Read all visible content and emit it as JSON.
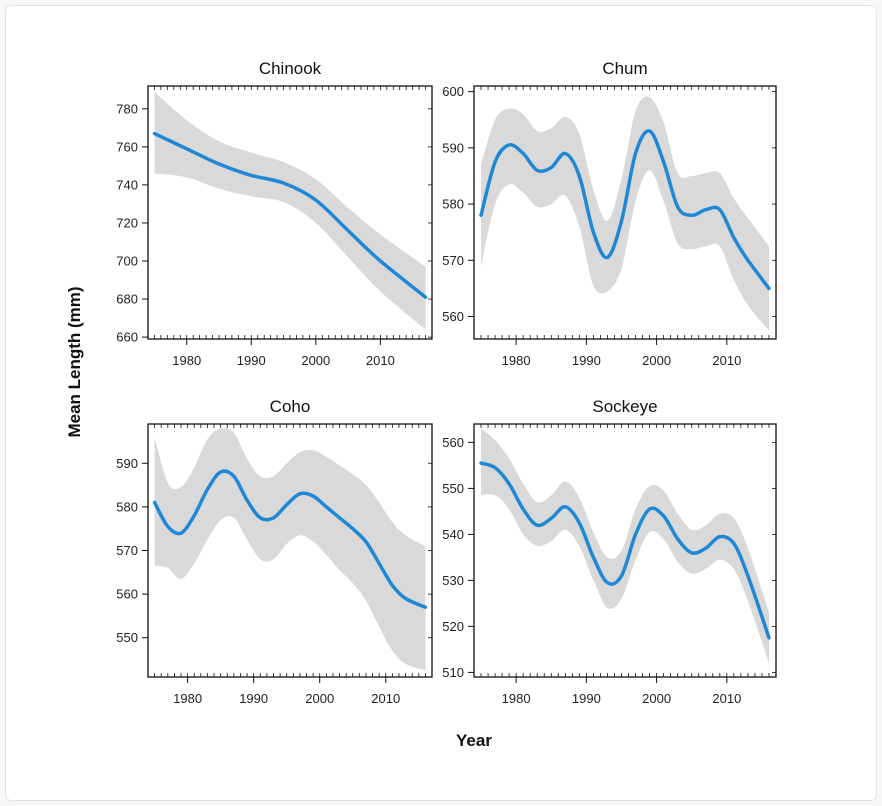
{
  "figure": {
    "ylabel": "Mean Length (mm)",
    "xlabel": "Year"
  },
  "colors": {
    "line": "#1f88d6",
    "band": "#d9d9d9",
    "axis": "#111111"
  },
  "chart_data": [
    {
      "type": "line",
      "title": "Chinook",
      "xlim": [
        1974,
        2018
      ],
      "ylim": [
        659,
        792
      ],
      "xticks": [
        1980,
        1990,
        2000,
        2010
      ],
      "yticks": [
        660,
        680,
        700,
        720,
        740,
        760,
        780
      ],
      "x": [
        1975,
        1980,
        1985,
        1990,
        1995,
        2000,
        2005,
        2010,
        2017
      ],
      "series": [
        {
          "values": [
            767,
            759,
            751,
            745,
            741,
            732,
            716,
            700,
            681
          ]
        }
      ],
      "lower": [
        746,
        744,
        738,
        734,
        731,
        720,
        702,
        684,
        664
      ],
      "upper": [
        789,
        774,
        763,
        757,
        752,
        743,
        728,
        714,
        697
      ]
    },
    {
      "type": "line",
      "title": "Chum",
      "xlim": [
        1974,
        2017
      ],
      "ylim": [
        556,
        601
      ],
      "xticks": [
        1980,
        1990,
        2000,
        2010
      ],
      "yticks": [
        560,
        570,
        580,
        590,
        600
      ],
      "x": [
        1975,
        1977,
        1979,
        1981,
        1983,
        1985,
        1987,
        1989,
        1991,
        1993,
        1995,
        1997,
        1999,
        2001,
        2003,
        2005,
        2007,
        2009,
        2011,
        2013,
        2016
      ],
      "series": [
        {
          "values": [
            578,
            587.5,
            590.5,
            589,
            586,
            586.5,
            589,
            585,
            575,
            570.5,
            577,
            589,
            593,
            587.5,
            579.5,
            578,
            579,
            579,
            574,
            570,
            565
          ]
        }
      ],
      "lower": [
        569,
        580,
        583.5,
        582,
        579.5,
        580,
        581.5,
        576,
        565.5,
        564.5,
        568.5,
        580.5,
        586,
        580.5,
        573,
        572,
        572.5,
        572.5,
        566.5,
        562,
        557.5
      ],
      "upper": [
        587,
        595,
        597,
        596,
        593,
        593.5,
        595.5,
        592.5,
        582.5,
        577,
        584.5,
        596.5,
        599,
        594.5,
        585.5,
        585,
        585.5,
        585.5,
        581,
        577.5,
        572.5
      ]
    },
    {
      "type": "line",
      "title": "Coho",
      "xlim": [
        1974,
        2017
      ],
      "ylim": [
        541,
        599
      ],
      "xticks": [
        1980,
        1990,
        2000,
        2010
      ],
      "yticks": [
        550,
        560,
        570,
        580,
        590
      ],
      "x": [
        1975,
        1977,
        1979,
        1981,
        1983,
        1985,
        1987,
        1989,
        1991,
        1993,
        1995,
        1997,
        1999,
        2001,
        2003,
        2005,
        2007,
        2009,
        2011,
        2013,
        2016
      ],
      "series": [
        {
          "values": [
            581,
            575.5,
            574,
            578,
            584,
            588,
            587,
            581.5,
            577.5,
            577.5,
            580.5,
            583,
            582.5,
            580,
            577.5,
            575,
            572,
            567,
            562,
            559,
            557
          ]
        }
      ],
      "lower": [
        566.5,
        566,
        563.5,
        567,
        572.5,
        577,
        577.5,
        572.5,
        568,
        568,
        571.5,
        573.5,
        572,
        569,
        565.5,
        562.5,
        558.5,
        552.5,
        547,
        544,
        542.5
      ],
      "upper": [
        596,
        585.5,
        584.5,
        589,
        595.5,
        598,
        597,
        591,
        587,
        587,
        590,
        592.5,
        593,
        591.5,
        589.5,
        587.5,
        585,
        581,
        576.5,
        573.5,
        571
      ]
    },
    {
      "type": "line",
      "title": "Sockeye",
      "xlim": [
        1974,
        2017
      ],
      "ylim": [
        509,
        564
      ],
      "xticks": [
        1980,
        1990,
        2000,
        2010
      ],
      "yticks": [
        510,
        520,
        530,
        540,
        550,
        560
      ],
      "x": [
        1975,
        1977,
        1979,
        1981,
        1983,
        1985,
        1987,
        1989,
        1991,
        1993,
        1995,
        1997,
        1999,
        2001,
        2003,
        2005,
        2007,
        2009,
        2011,
        2013,
        2016
      ],
      "series": [
        {
          "values": [
            555.5,
            554.5,
            551,
            545.5,
            542,
            543.5,
            546,
            542.5,
            535,
            529.5,
            531,
            540,
            545.5,
            544,
            539,
            536,
            537,
            539.5,
            538,
            531,
            517.5
          ]
        }
      ],
      "lower": [
        548.5,
        548.5,
        545.5,
        540,
        537.5,
        538.5,
        541,
        537.5,
        530,
        524,
        526,
        534.5,
        540.5,
        539,
        534,
        531.5,
        532.5,
        534.5,
        532.5,
        525.5,
        512
      ],
      "upper": [
        563,
        560.5,
        556.5,
        551,
        547,
        548.5,
        551.5,
        548,
        540.5,
        535,
        536.5,
        545.5,
        550.5,
        549.5,
        544.5,
        541,
        542,
        544.5,
        543.5,
        537,
        523
      ]
    }
  ]
}
